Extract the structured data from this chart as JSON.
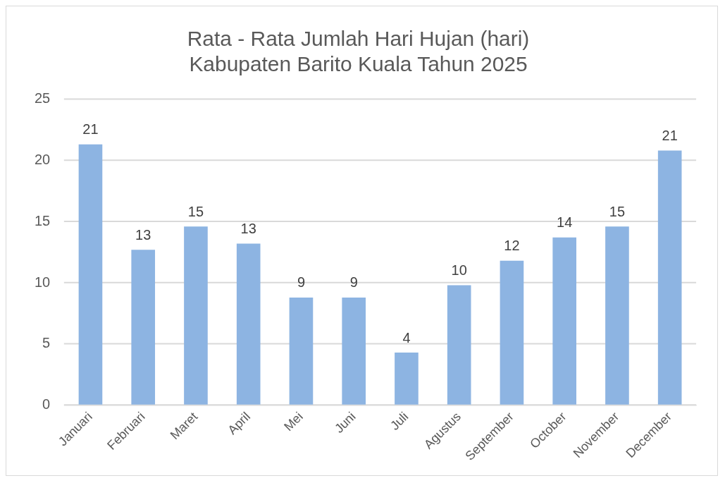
{
  "chart_data": {
    "type": "bar",
    "title": "Rata - Rata Jumlah Hari Hujan (hari)\nKabupaten Barito Kuala Tahun 2025",
    "categories": [
      "Januari",
      "Februari",
      "Maret",
      "April",
      "Mei",
      "Juni",
      "Juli",
      "Agustus",
      "September",
      "October",
      "November",
      "December"
    ],
    "values": [
      21.3,
      12.7,
      14.6,
      13.2,
      8.8,
      8.8,
      4.3,
      9.8,
      11.8,
      13.7,
      14.6,
      20.8
    ],
    "value_labels": [
      "21",
      "13",
      "15",
      "13",
      "9",
      "9",
      "4",
      "10",
      "12",
      "14",
      "15",
      "21"
    ],
    "color": "#8db4e2",
    "ylim": [
      0,
      25
    ],
    "yticks": [
      0,
      5,
      10,
      15,
      20,
      25
    ],
    "grid": "y",
    "legend": false
  }
}
